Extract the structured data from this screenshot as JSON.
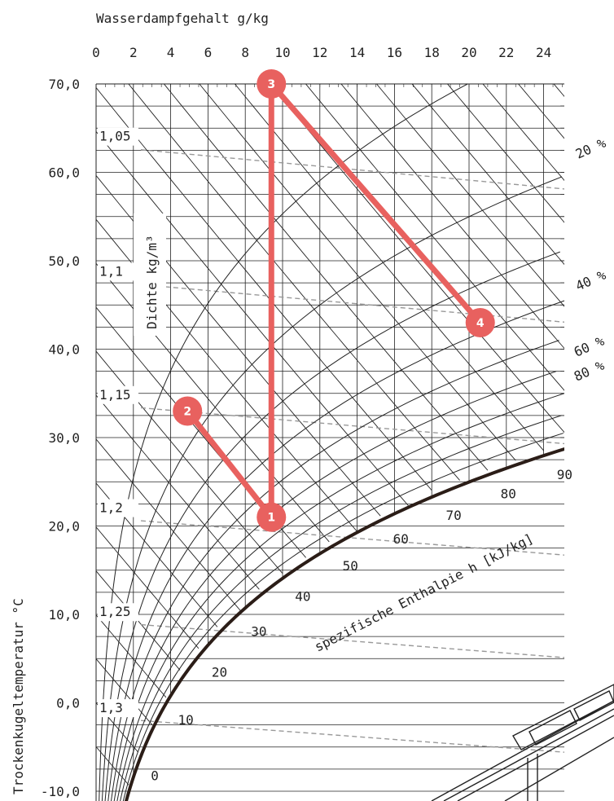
{
  "chart_data": {
    "type": "psychrometric",
    "xlabel": "Wasserdampfgehalt g/kg",
    "ylabel": "Trockenkugeltemperatur °C",
    "density_label": "Dichte kg/m³",
    "enthalpy_label": "spezifische Enthalpie h [kJ/kg]",
    "xlim": [
      0,
      24
    ],
    "ylim": [
      -10,
      70
    ],
    "x_ticks": [
      "0",
      "2",
      "4",
      "6",
      "8",
      "10",
      "12",
      "14",
      "16",
      "18",
      "20",
      "22",
      "24"
    ],
    "y_ticks": [
      "70,0",
      "60,0",
      "50,0",
      "40,0",
      "30,0",
      "20,0",
      "10,0",
      "0,0",
      "-10,0"
    ],
    "density_lines": [
      {
        "label": "1,05",
        "value": 1.05
      },
      {
        "label": "1,1",
        "value": 1.1
      },
      {
        "label": "1,15",
        "value": 1.15
      },
      {
        "label": "1,2",
        "value": 1.2
      },
      {
        "label": "1,25",
        "value": 1.25
      },
      {
        "label": "1,3",
        "value": 1.3
      }
    ],
    "rh_curves": [
      {
        "label": "20 %",
        "value": 20
      },
      {
        "label": "40 %",
        "value": 40
      },
      {
        "label": "60 %",
        "value": 60
      },
      {
        "label": "80 %",
        "value": 80
      }
    ],
    "enthalpy_labels": [
      "0",
      "10",
      "20",
      "30",
      "40",
      "50",
      "60",
      "70",
      "80",
      "90"
    ],
    "points": [
      {
        "label": "1",
        "x": 9.4,
        "y": 21
      },
      {
        "label": "2",
        "x": 4.9,
        "y": 33
      },
      {
        "label": "3",
        "x": 9.4,
        "y": 70
      },
      {
        "label": "4",
        "x": 20.6,
        "y": 43
      }
    ],
    "process_lines": [
      [
        "2",
        "1"
      ],
      [
        "1",
        "3"
      ],
      [
        "3",
        "4"
      ]
    ],
    "colors": {
      "process": "#e8615f",
      "grid": "#222222",
      "saturation": "#2b1d17",
      "density": "#999999"
    }
  }
}
